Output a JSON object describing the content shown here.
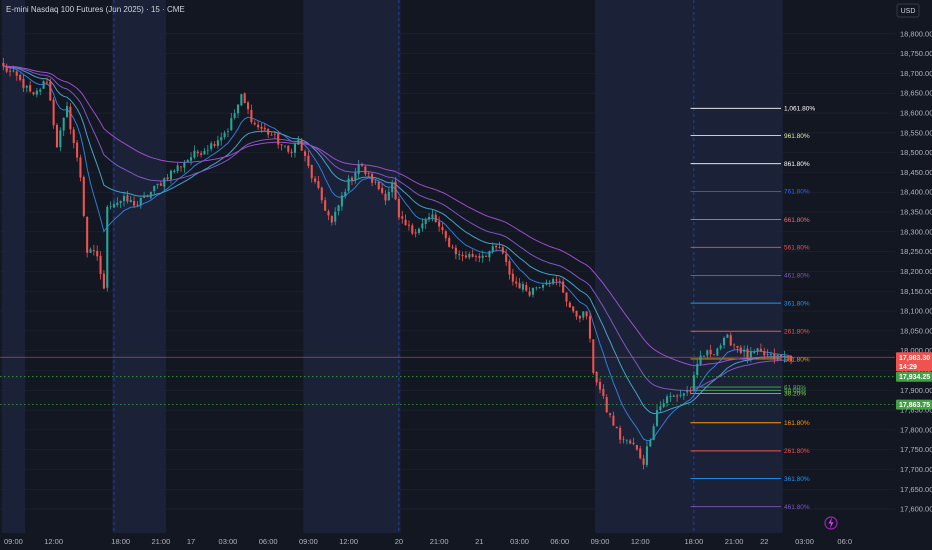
{
  "header": {
    "title": "E-mini Nasdaq 100 Futures (Jun 2025) · 15 · CME",
    "currency": "USD"
  },
  "colors": {
    "background": "#131722",
    "session_shade": "#1b2238",
    "grid": "#1f2433",
    "up": "#26a69a",
    "down": "#ef5350",
    "ma_purple": "#8e54e9",
    "ma_blue": "#2f7bd9",
    "ma_teal": "#43a2c9",
    "price_line": "#ef5350",
    "dotted_green": "#4caf50"
  },
  "chart_data": {
    "type": "candlestick",
    "title": "E-mini Nasdaq 100 Futures (Jun 2025) · 15 · CME",
    "ylim": [
      17575,
      18850
    ],
    "y_ticks": [
      "18,800.00",
      "18,750.00",
      "18,700.00",
      "18,650.00",
      "18,600.00",
      "18,550.00",
      "18,500.00",
      "18,450.00",
      "18,400.00",
      "18,350.00",
      "18,300.00",
      "18,250.00",
      "18,200.00",
      "18,150.00",
      "18,100.00",
      "18,050.00",
      "18,000.00",
      "17,950.00",
      "17,900.00",
      "17,850.00",
      "17,800.00",
      "17,750.00",
      "17,700.00",
      "17,650.00",
      "17,600.00"
    ],
    "y_tick_values": [
      18800,
      18750,
      18700,
      18650,
      18600,
      18550,
      18500,
      18450,
      18400,
      18350,
      18300,
      18250,
      18200,
      18150,
      18100,
      18050,
      18000,
      17950,
      17900,
      17850,
      17800,
      17750,
      17700,
      17650,
      17600
    ],
    "x_ticks": [
      "09:00",
      "12:00",
      "18:00",
      "21:00",
      "17",
      "03:00",
      "06:00",
      "09:00",
      "12:00",
      "20",
      "21:00",
      "21",
      "03:00",
      "06:00",
      "09:00",
      "12:00",
      "18:00",
      "21:00",
      "22",
      "03:00",
      "06:0"
    ],
    "x_tick_bars": [
      3,
      15,
      35,
      47,
      56,
      67,
      79,
      91,
      103,
      118,
      130,
      142,
      154,
      166,
      178,
      190,
      206,
      218,
      227,
      239,
      251
    ],
    "day_separator_bars": [
      33,
      118,
      206
    ],
    "shaded_sessions": [
      [
        0,
        6
      ],
      [
        33,
        48
      ],
      [
        90,
        118
      ],
      [
        177,
        206
      ],
      [
        206,
        232
      ]
    ],
    "price_levels": [
      {
        "value": 17983.3,
        "label": "17,983.30",
        "sublabel": "14:29",
        "color": "#ef5350",
        "style": "solid"
      },
      {
        "value": 17934.25,
        "label": "17,934.25",
        "color": "#43a047",
        "style": "dotted"
      },
      {
        "value": 17863.75,
        "label": "17,863.75",
        "color": "#43a047",
        "style": "dotted"
      }
    ],
    "fib_levels": [
      {
        "label": "1,061.80%",
        "value": 18612,
        "color": "#ffffff"
      },
      {
        "label": "961.80%",
        "value": 18543,
        "color": "#e0f2a0"
      },
      {
        "label": "861.80%",
        "value": 18472,
        "color": "#ffffff"
      },
      {
        "label": "761.80%",
        "value": 18402,
        "color": "#2962ff"
      },
      {
        "label": "661.80%",
        "value": 18331,
        "color": "#e57373"
      },
      {
        "label": "561.80%",
        "value": 18261,
        "color": "#ef5350"
      },
      {
        "label": "461.80%",
        "value": 18190,
        "color": "#7e57c2"
      },
      {
        "label": "361.80%",
        "value": 18120,
        "color": "#2196f3"
      },
      {
        "label": "261.80%",
        "value": 18049,
        "color": "#ef5350"
      },
      {
        "label": "161.80%",
        "value": 17979,
        "color": "#ff9800"
      },
      {
        "label": "61.80%",
        "value": 17908,
        "color": "#4caf50"
      },
      {
        "label": "50.00%",
        "value": 17900,
        "color": "#4caf50"
      },
      {
        "label": "38.20%",
        "value": 17892,
        "color": "#8bc34a"
      },
      {
        "label": "161.80%",
        "value": 17818,
        "color": "#ff9800"
      },
      {
        "label": "261.80%",
        "value": 17747,
        "color": "#ef5350"
      },
      {
        "label": "361.80%",
        "value": 17677,
        "color": "#2196f3"
      },
      {
        "label": "461.80%",
        "value": 17606,
        "color": "#7e57c2"
      }
    ],
    "fib_start_bar": 205,
    "fib_end_bar": 232,
    "bar_count": 236,
    "bar_domain": [
      -1,
      266
    ],
    "keypoints": [
      [
        0,
        18715
      ],
      [
        4,
        18690
      ],
      [
        9,
        18640
      ],
      [
        13,
        18685
      ],
      [
        16,
        18520
      ],
      [
        19,
        18610
      ],
      [
        23,
        18440
      ],
      [
        25,
        18250
      ],
      [
        28,
        18240
      ],
      [
        30,
        18150
      ],
      [
        31,
        18370
      ],
      [
        36,
        18380
      ],
      [
        40,
        18370
      ],
      [
        44,
        18400
      ],
      [
        50,
        18450
      ],
      [
        56,
        18490
      ],
      [
        62,
        18520
      ],
      [
        67,
        18560
      ],
      [
        71,
        18640
      ],
      [
        75,
        18570
      ],
      [
        80,
        18545
      ],
      [
        85,
        18500
      ],
      [
        88,
        18530
      ],
      [
        92,
        18440
      ],
      [
        95,
        18380
      ],
      [
        98,
        18320
      ],
      [
        102,
        18410
      ],
      [
        106,
        18470
      ],
      [
        110,
        18430
      ],
      [
        114,
        18390
      ],
      [
        116,
        18420
      ],
      [
        118,
        18330
      ],
      [
        122,
        18300
      ],
      [
        128,
        18340
      ],
      [
        132,
        18280
      ],
      [
        136,
        18240
      ],
      [
        142,
        18240
      ],
      [
        148,
        18260
      ],
      [
        152,
        18175
      ],
      [
        157,
        18150
      ],
      [
        162,
        18180
      ],
      [
        166,
        18170
      ],
      [
        170,
        18090
      ],
      [
        174,
        18090
      ],
      [
        176,
        17950
      ],
      [
        180,
        17850
      ],
      [
        184,
        17780
      ],
      [
        188,
        17760
      ],
      [
        191,
        17720
      ],
      [
        195,
        17850
      ],
      [
        198,
        17880
      ],
      [
        202,
        17890
      ],
      [
        205,
        17900
      ],
      [
        208,
        17985
      ],
      [
        212,
        18000
      ],
      [
        216,
        18030
      ],
      [
        219,
        18010
      ],
      [
        222,
        17985
      ],
      [
        225,
        17995
      ],
      [
        229,
        17983
      ]
    ],
    "ma_periods": [
      {
        "name": "ma-fast",
        "period": 10,
        "color": "#2f7bd9"
      },
      {
        "name": "ma-mid",
        "period": 21,
        "color": "#43a2c9"
      },
      {
        "name": "ma-slow",
        "period": 34,
        "color": "#7e57c2"
      },
      {
        "name": "ma-long",
        "period": 55,
        "color": "#9c4dcc"
      }
    ]
  }
}
